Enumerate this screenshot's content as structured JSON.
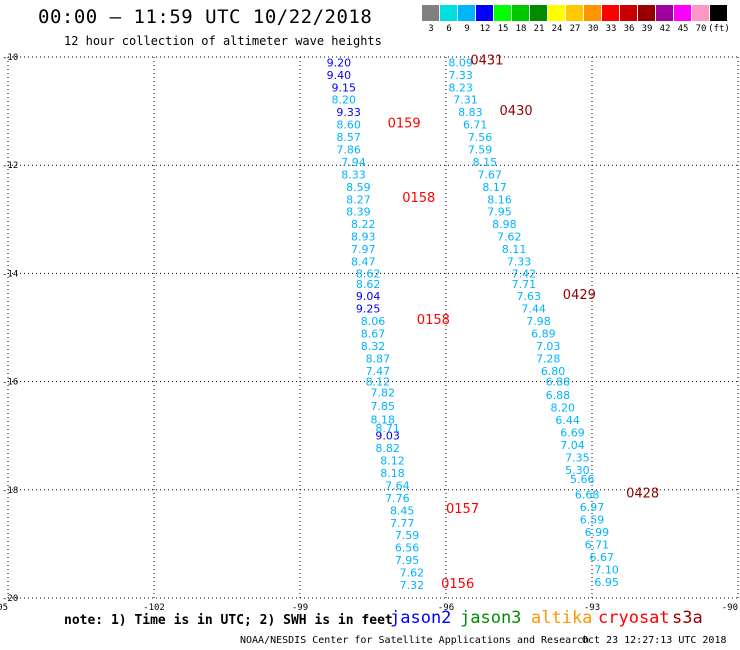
{
  "header": {
    "title": "00:00 – 11:59 UTC 10/22/2018",
    "subtitle": "12 hour collection of altimeter wave heights"
  },
  "color_scale": {
    "swatches": [
      "#808080",
      "#00e0e0",
      "#00b4ff",
      "#0000ff",
      "#00ff00",
      "#00c800",
      "#008c00",
      "#ffff00",
      "#ffc800",
      "#ff9600",
      "#ff0000",
      "#c80000",
      "#960000",
      "#a000a0",
      "#ff00ff",
      "#ff96c8",
      "#000000"
    ],
    "labels": [
      "3",
      "6",
      "9",
      "12",
      "15",
      "18",
      "21",
      "24",
      "27",
      "30",
      "33",
      "36",
      "39",
      "42",
      "45",
      "70",
      "(ft)"
    ]
  },
  "chart_data": {
    "type": "scatter",
    "xlim": [
      -105,
      -90
    ],
    "ylim": [
      -20,
      -10
    ],
    "x_ticks": [
      "-105",
      "-102",
      "-99",
      "-96",
      "-93",
      "-90"
    ],
    "y_ticks": [
      "-10",
      "-12",
      "-14",
      "-16",
      "-18",
      "-20"
    ],
    "grid": true,
    "satellite_colors": {
      "jason2": "#0000ff",
      "jason3": "#008c00",
      "altika": "#ff9600",
      "cryosat": "#ff0000",
      "s3a": "#960000"
    },
    "series": [
      {
        "name": "jason2",
        "color": "#0000ff",
        "points": [
          {
            "x": -98.2,
            "y": -10.1,
            "v": "9.20"
          },
          {
            "x": -98.2,
            "y": -10.33,
            "v": "9.40"
          },
          {
            "x": -98.1,
            "y": -10.56,
            "v": "9.15"
          },
          {
            "x": -98.0,
            "y": -11.02,
            "v": "9.33"
          },
          {
            "x": -97.6,
            "y": -14.42,
            "v": "9.04"
          },
          {
            "x": -97.6,
            "y": -14.65,
            "v": "9.25"
          },
          {
            "x": -97.2,
            "y": -17.0,
            "v": "9.03"
          }
        ]
      },
      {
        "name": "jason2",
        "color": "#00b4ff",
        "points": [
          {
            "x": -98.1,
            "y": -10.79,
            "v": "8.20"
          },
          {
            "x": -98.0,
            "y": -11.25,
            "v": "8.60"
          },
          {
            "x": -98.0,
            "y": -11.48,
            "v": "8.57"
          },
          {
            "x": -98.0,
            "y": -11.71,
            "v": "7.86"
          },
          {
            "x": -97.9,
            "y": -11.94,
            "v": "7.94"
          },
          {
            "x": -97.9,
            "y": -12.17,
            "v": "8.33"
          },
          {
            "x": -97.8,
            "y": -12.4,
            "v": "8.59"
          },
          {
            "x": -97.8,
            "y": -12.63,
            "v": "8.27"
          },
          {
            "x": -97.8,
            "y": -12.86,
            "v": "8.39"
          },
          {
            "x": -97.7,
            "y": -13.09,
            "v": "8.22"
          },
          {
            "x": -97.7,
            "y": -13.32,
            "v": "8.93"
          },
          {
            "x": -97.7,
            "y": -13.55,
            "v": "7.97"
          },
          {
            "x": -97.7,
            "y": -13.78,
            "v": "8.47"
          },
          {
            "x": -97.6,
            "y": -14.0,
            "v": "8.62"
          },
          {
            "x": -97.6,
            "y": -14.2,
            "v": "8.62"
          },
          {
            "x": -97.5,
            "y": -14.88,
            "v": "8.06"
          },
          {
            "x": -97.5,
            "y": -15.11,
            "v": "8.67"
          },
          {
            "x": -97.5,
            "y": -15.34,
            "v": "8.32"
          },
          {
            "x": -97.4,
            "y": -15.57,
            "v": "8.87"
          },
          {
            "x": -97.4,
            "y": -15.8,
            "v": "7.47"
          },
          {
            "x": -97.4,
            "y": -16.0,
            "v": "8.12"
          },
          {
            "x": -97.3,
            "y": -16.2,
            "v": "7.82"
          },
          {
            "x": -97.3,
            "y": -16.45,
            "v": "7.85"
          },
          {
            "x": -97.3,
            "y": -16.7,
            "v": "8.18"
          },
          {
            "x": -97.2,
            "y": -16.86,
            "v": "8.71"
          },
          {
            "x": -97.2,
            "y": -17.23,
            "v": "8.82"
          },
          {
            "x": -97.1,
            "y": -17.46,
            "v": "8.12"
          },
          {
            "x": -97.1,
            "y": -17.69,
            "v": "8.18"
          },
          {
            "x": -97.0,
            "y": -17.92,
            "v": "7.64"
          },
          {
            "x": -97.0,
            "y": -18.15,
            "v": "7.76"
          },
          {
            "x": -96.9,
            "y": -18.38,
            "v": "8.45"
          },
          {
            "x": -96.9,
            "y": -18.61,
            "v": "7.77"
          },
          {
            "x": -96.8,
            "y": -18.84,
            "v": "7.59"
          },
          {
            "x": -96.8,
            "y": -19.07,
            "v": "6.56"
          },
          {
            "x": -96.8,
            "y": -19.3,
            "v": "7.95"
          },
          {
            "x": -96.7,
            "y": -19.53,
            "v": "7.62"
          },
          {
            "x": -96.7,
            "y": -19.76,
            "v": "7.32"
          }
        ]
      },
      {
        "name": "s3a",
        "color": "#00b4ff",
        "points": [
          {
            "x": -95.7,
            "y": -10.1,
            "v": "8.09"
          },
          {
            "x": -95.7,
            "y": -10.33,
            "v": "7.33"
          },
          {
            "x": -95.7,
            "y": -10.56,
            "v": "8.23"
          },
          {
            "x": -95.6,
            "y": -10.79,
            "v": "7.31"
          },
          {
            "x": -95.5,
            "y": -11.02,
            "v": "8.83"
          },
          {
            "x": -95.4,
            "y": -11.25,
            "v": "6.71"
          },
          {
            "x": -95.3,
            "y": -11.48,
            "v": "7.56"
          },
          {
            "x": -95.3,
            "y": -11.71,
            "v": "7.59"
          },
          {
            "x": -95.2,
            "y": -11.94,
            "v": "8.15"
          },
          {
            "x": -95.1,
            "y": -12.17,
            "v": "7.67"
          },
          {
            "x": -95.0,
            "y": -12.4,
            "v": "8.17"
          },
          {
            "x": -94.9,
            "y": -12.63,
            "v": "8.16"
          },
          {
            "x": -94.9,
            "y": -12.86,
            "v": "7.95"
          },
          {
            "x": -94.8,
            "y": -13.09,
            "v": "8.98"
          },
          {
            "x": -94.7,
            "y": -13.32,
            "v": "7.62"
          },
          {
            "x": -94.6,
            "y": -13.55,
            "v": "8.11"
          },
          {
            "x": -94.5,
            "y": -13.78,
            "v": "7.33"
          },
          {
            "x": -94.4,
            "y": -14.0,
            "v": "7.42"
          },
          {
            "x": -94.4,
            "y": -14.2,
            "v": "7.71"
          },
          {
            "x": -94.3,
            "y": -14.42,
            "v": "7.63"
          },
          {
            "x": -94.2,
            "y": -14.65,
            "v": "7.44"
          },
          {
            "x": -94.1,
            "y": -14.88,
            "v": "7.98"
          },
          {
            "x": -94.0,
            "y": -15.11,
            "v": "6.89"
          },
          {
            "x": -93.9,
            "y": -15.34,
            "v": "7.03"
          },
          {
            "x": -93.9,
            "y": -15.57,
            "v": "7.28"
          },
          {
            "x": -93.8,
            "y": -15.8,
            "v": "6.80"
          },
          {
            "x": -93.7,
            "y": -16.0,
            "v": "6.88"
          },
          {
            "x": -93.7,
            "y": -16.25,
            "v": "6.88"
          },
          {
            "x": -93.6,
            "y": -16.48,
            "v": "8.20"
          },
          {
            "x": -93.5,
            "y": -16.71,
            "v": "6.44"
          },
          {
            "x": -93.4,
            "y": -16.94,
            "v": "6.69"
          },
          {
            "x": -93.4,
            "y": -17.17,
            "v": "7.04"
          },
          {
            "x": -93.3,
            "y": -17.4,
            "v": "7.35"
          },
          {
            "x": -93.3,
            "y": -17.63,
            "v": "5.30"
          },
          {
            "x": -93.2,
            "y": -17.8,
            "v": "5.66"
          },
          {
            "x": -93.1,
            "y": -18.09,
            "v": "6.68"
          },
          {
            "x": -93.0,
            "y": -18.32,
            "v": "6.97"
          },
          {
            "x": -93.0,
            "y": -18.55,
            "v": "6.59"
          },
          {
            "x": -92.9,
            "y": -18.78,
            "v": "6.99"
          },
          {
            "x": -92.9,
            "y": -19.01,
            "v": "6.71"
          },
          {
            "x": -92.8,
            "y": -19.24,
            "v": "6.67"
          },
          {
            "x": -92.7,
            "y": -19.47,
            "v": "7.10"
          },
          {
            "x": -92.7,
            "y": -19.7,
            "v": "6.95"
          }
        ]
      }
    ],
    "annotations": [
      {
        "x": -95.5,
        "y": -10.05,
        "text": "0431",
        "color": "#960000"
      },
      {
        "x": -94.9,
        "y": -10.98,
        "text": "0430",
        "color": "#960000"
      },
      {
        "x": -97.2,
        "y": -11.21,
        "text": "0159",
        "color": "#ff0000"
      },
      {
        "x": -96.9,
        "y": -12.59,
        "text": "0158",
        "color": "#ff0000"
      },
      {
        "x": -93.6,
        "y": -14.38,
        "text": "0429",
        "color": "#960000"
      },
      {
        "x": -96.6,
        "y": -14.84,
        "text": "0158",
        "color": "#ff0000"
      },
      {
        "x": -92.3,
        "y": -18.05,
        "text": "0428",
        "color": "#960000"
      },
      {
        "x": -96.0,
        "y": -18.34,
        "text": "0157",
        "color": "#ff0000"
      },
      {
        "x": -96.1,
        "y": -19.72,
        "text": "0156",
        "color": "#ff0000"
      }
    ]
  },
  "footer": {
    "note": "note: 1) Time is in UTC; 2) SWH is in feet",
    "satellites": [
      {
        "label": "jason2",
        "color": "#0000ff"
      },
      {
        "label": "jason3",
        "color": "#008c00"
      },
      {
        "label": "altika",
        "color": "#ff9600"
      },
      {
        "label": "cryosat",
        "color": "#ff0000"
      },
      {
        "label": "s3a",
        "color": "#960000"
      }
    ],
    "credit": "NOAA/NESDIS Center for Satellite Applications and Research",
    "timestamp": "Oct 23 12:27:13 UTC 2018"
  }
}
